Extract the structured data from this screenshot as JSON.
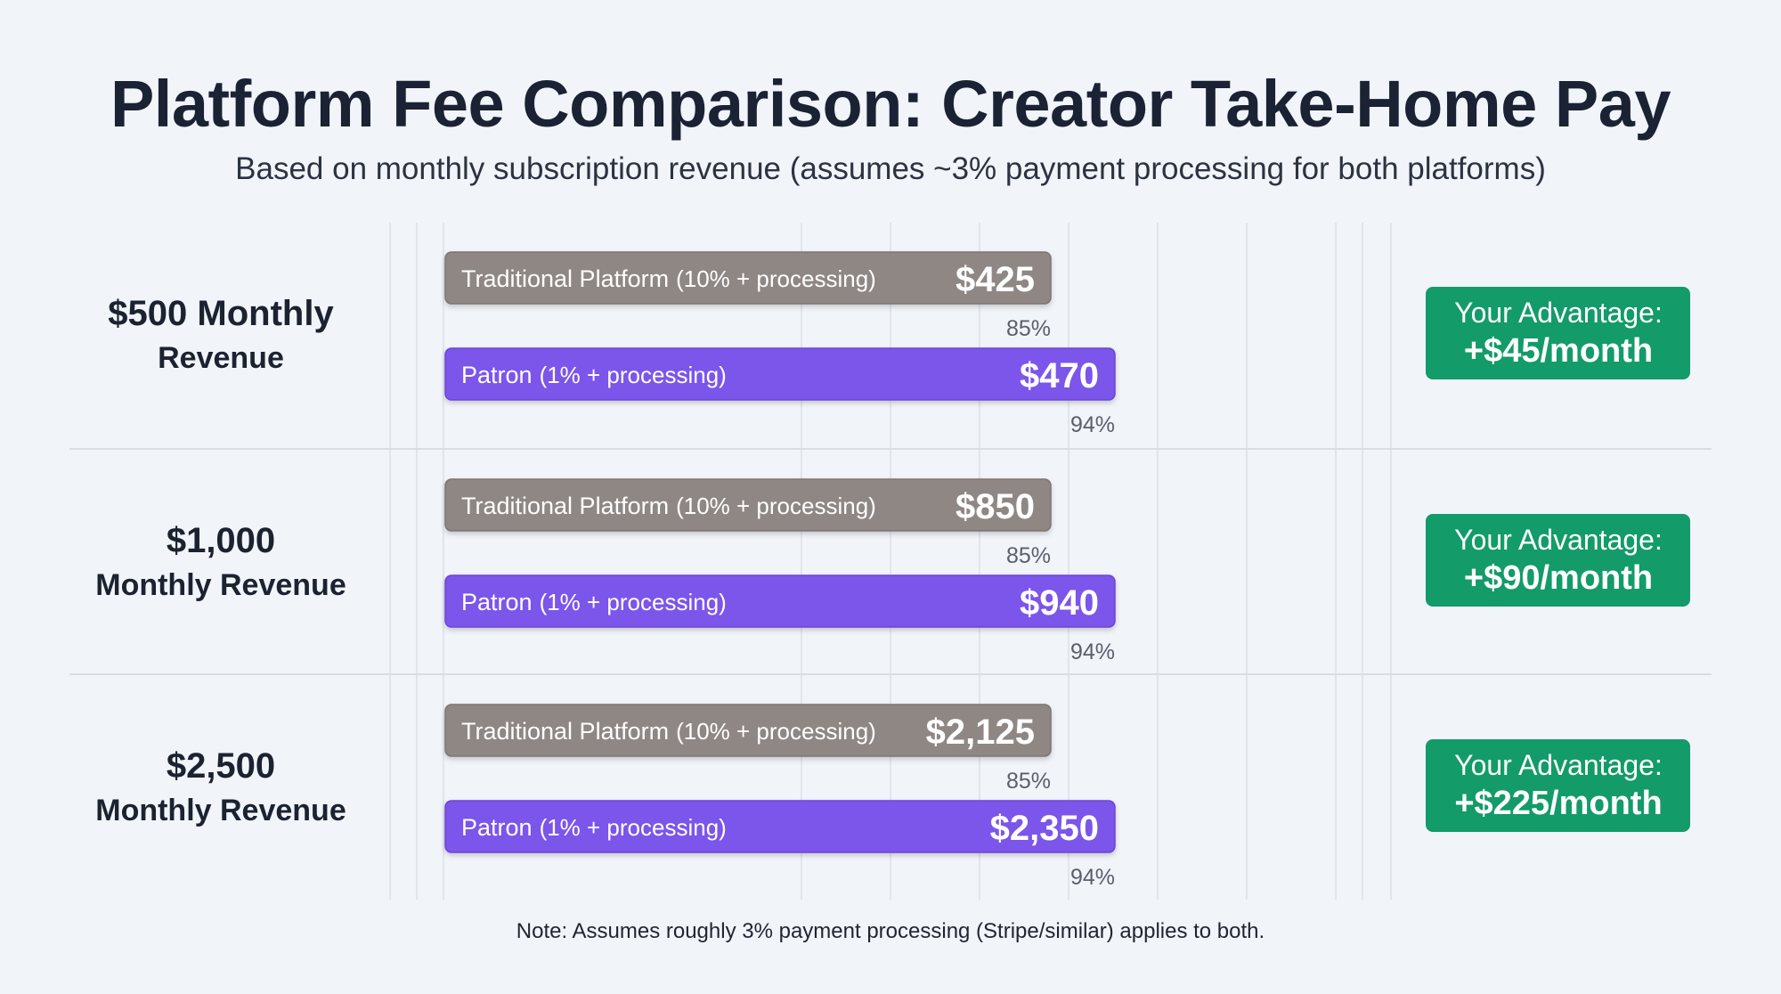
{
  "title": "Platform Fee Comparison: Creator Take-Home Pay",
  "subtitle": "Based on monthly subscription revenue (assumes ~3% payment processing for both platforms)",
  "note": "Note: Assumes roughly 3% payment processing (Stripe/similar) applies to both.",
  "colors": {
    "traditional": "#8f8784",
    "patron": "#7b55ea",
    "advantage": "#139b69",
    "background": "#f1f4f9"
  },
  "chart_data": {
    "type": "bar",
    "orientation": "horizontal",
    "title": "Platform Fee Comparison: Creator Take-Home Pay",
    "subtitle": "Based on monthly subscription revenue (assumes ~3% payment processing for both platforms)",
    "categories": [
      "$500 Monthly Revenue",
      "$1,000 Monthly Revenue",
      "$2,500 Monthly Revenue"
    ],
    "category_lines": [
      [
        "$500 Monthly",
        "Revenue"
      ],
      [
        "$1,000",
        "Monthly Revenue"
      ],
      [
        "$2,500",
        "Monthly Revenue"
      ]
    ],
    "series": [
      {
        "name_main": "Traditional Platform",
        "name_detail": "(10% + processing)",
        "values": [
          425,
          850,
          2125
        ],
        "value_labels": [
          "$425",
          "$850",
          "$2,125"
        ],
        "percents": [
          "85%",
          "85%",
          "85%"
        ],
        "color": "#8f8784"
      },
      {
        "name_main": "Patron",
        "name_detail": "(1% + processing)",
        "values": [
          470,
          940,
          2350
        ],
        "value_labels": [
          "$470",
          "$940",
          "$2,350"
        ],
        "percents": [
          "94%",
          "94%",
          "94%"
        ],
        "color": "#7b55ea"
      }
    ],
    "advantage": {
      "label": "Your Advantage:",
      "values": [
        "+$45/month",
        "+$90/month",
        "+$225/month"
      ]
    },
    "grid": true,
    "legend": "none"
  }
}
